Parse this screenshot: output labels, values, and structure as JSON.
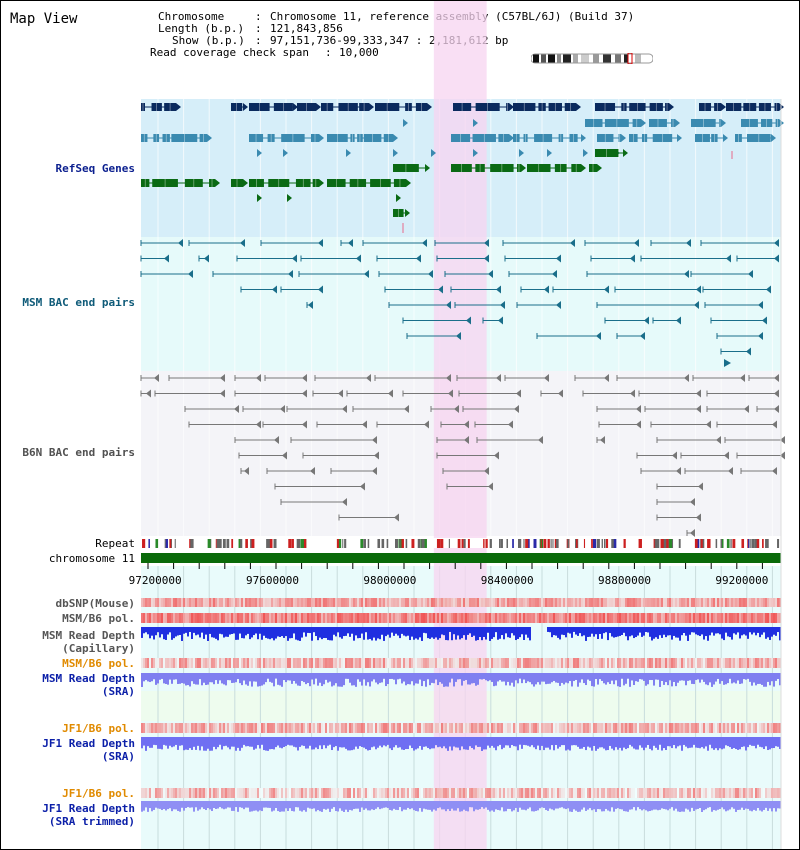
{
  "title": "Map View",
  "info": {
    "chromosome_key": "Chromosome",
    "chromosome_val": "Chromosome 11, reference assembly (C57BL/6J) (Build 37)",
    "length_key": "Length (b.p.)",
    "length_val": "121,843,856",
    "show_key": "Show (b.p.)",
    "show_val": "97,151,736-99,333,347 : 2,181,612 bp",
    "span_key": "Read coverage check span",
    "span_val": "10,000"
  },
  "tracks": {
    "refseq": "RefSeq Genes",
    "msm_bac": "MSM BAC end pairs",
    "b6n_bac": "B6N BAC end pairs",
    "repeat": "Repeat",
    "chromosome": "chromosome 11",
    "dbsnp": "dbSNP(Mouse)",
    "msm_b6_pol_1": "MSM/B6 pol.",
    "msm_depth_cap": "MSM Read Depth\n(Capillary)",
    "msm_b6_pol_2": "MSM/B6 pol.",
    "msm_depth_sra": "MSM Read Depth\n(SRA)",
    "jf1_b6_pol_1": "JF1/B6 pol.",
    "jf1_depth_sra": "JF1 Read Depth\n(SRA)",
    "jf1_b6_pol_2": "JF1/B6 pol.",
    "jf1_depth_trim": "JF1 Read Depth\n(SRA trimmed)"
  },
  "axis": {
    "start_bp": 97151736,
    "end_bp": 99333347,
    "ticks": [
      "97200000",
      "97600000",
      "98000000",
      "98400000",
      "98800000",
      "99200000"
    ],
    "tick_values": [
      97200000,
      97600000,
      98000000,
      98400000,
      98800000,
      99200000
    ]
  },
  "highlight_region": [
    98150000,
    98330000
  ],
  "colors": {
    "refseq_bg": "#d6eef9",
    "msm_bg": "#e6fafa",
    "b6n_bg": "#f4f4f8",
    "highlight": "#f7d4f0",
    "gene_dark": "#0a2a5e",
    "gene_mid": "#3a8ab0",
    "gene_green": "#0a6a14",
    "msm_line": "#1a6e8a",
    "b6n_line": "#777777",
    "chromosome_bar": "#0a6a0a",
    "pol_red": "#e83a3a",
    "depth_blue": "#1f2fe0",
    "depth_light": "#7f7ff0"
  }
}
